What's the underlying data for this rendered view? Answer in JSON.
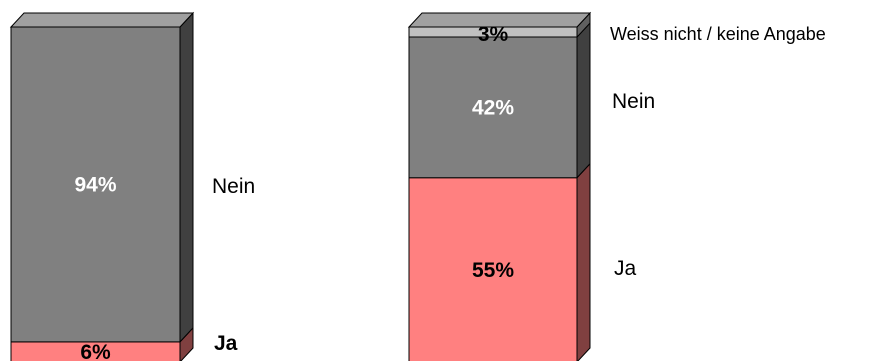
{
  "chart_data": {
    "type": "bar",
    "stacked": true,
    "percent_stacked": true,
    "three_d": true,
    "ylim": [
      0,
      100
    ],
    "grid": false,
    "colors": {
      "ja_front": "#ff8080",
      "ja_side": "#804040",
      "nein_front": "#808080",
      "nein_side": "#404040",
      "nein_top": "#a0a0a0",
      "wn_front": "#c0c0c0",
      "wn_side": "#606060",
      "wn_top": "#a0a0a0",
      "label_light": "#ffffff",
      "label_dark": "#000000"
    },
    "bars": [
      {
        "segments": [
          {
            "category": "Ja",
            "value": 6,
            "label": "6%"
          },
          {
            "category": "Nein",
            "value": 94,
            "label": "94%"
          }
        ],
        "category_labels": [
          {
            "category": "Nein",
            "text": "Nein"
          },
          {
            "category": "Ja",
            "text": "Ja"
          }
        ]
      },
      {
        "segments": [
          {
            "category": "Ja",
            "value": 55,
            "label": "55%"
          },
          {
            "category": "Nein",
            "value": 42,
            "label": "42%"
          },
          {
            "category": "Weiss nicht / keine Angabe",
            "value": 3,
            "label": "3%"
          }
        ],
        "category_labels": [
          {
            "category": "Weiss nicht / keine Angabe",
            "text": "Weiss nicht / keine Angabe"
          },
          {
            "category": "Nein",
            "text": "Nein"
          },
          {
            "category": "Ja",
            "text": "Ja"
          }
        ]
      }
    ]
  }
}
